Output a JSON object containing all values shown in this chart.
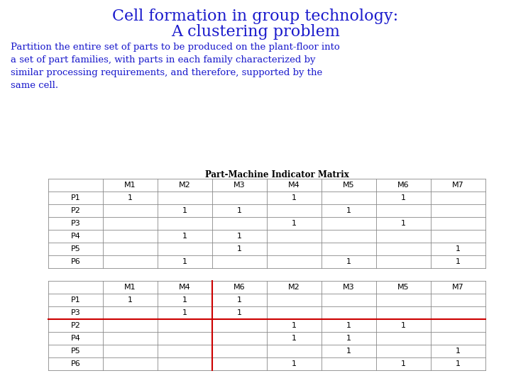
{
  "title_line1": "Cell formation in group technology:",
  "title_line2": "A clustering problem",
  "body_text": "Partition the entire set of parts to be produced on the plant-floor into\na set of part families, with parts in each family characterized by\nsimilar processing requirements, and therefore, supported by the\nsame cell.",
  "subtitle": "Part-Machine Indicator Matrix",
  "title_color": "#1a1acc",
  "body_color": "#1a1acc",
  "subtitle_color": "#000000",
  "bg_color": "#ffffff",
  "table1": {
    "col_headers": [
      "",
      "M1",
      "M2",
      "M3",
      "M4",
      "M5",
      "M6",
      "M7"
    ],
    "rows": [
      [
        "P1",
        "1",
        "",
        "",
        "1",
        "",
        "1",
        ""
      ],
      [
        "P2",
        "",
        "1",
        "1",
        "",
        "1",
        "",
        ""
      ],
      [
        "P3",
        "",
        "",
        "",
        "1",
        "",
        "1",
        ""
      ],
      [
        "P4",
        "",
        "1",
        "1",
        "",
        "",
        "",
        ""
      ],
      [
        "P5",
        "",
        "",
        "1",
        "",
        "",
        "",
        "1"
      ],
      [
        "P6",
        "",
        "1",
        "",
        "",
        "1",
        "",
        "1"
      ]
    ]
  },
  "table2": {
    "col_headers": [
      "",
      "M1",
      "M4",
      "M6",
      "M2",
      "M3",
      "M5",
      "M7"
    ],
    "rows": [
      [
        "P1",
        "1",
        "1",
        "1",
        "",
        "",
        "",
        ""
      ],
      [
        "P3",
        "",
        "1",
        "1",
        "",
        "",
        "",
        ""
      ],
      [
        "P2",
        "",
        "",
        "",
        "1",
        "1",
        "1",
        ""
      ],
      [
        "P4",
        "",
        "",
        "",
        "1",
        "1",
        "",
        ""
      ],
      [
        "P5",
        "",
        "",
        "",
        "",
        "1",
        "",
        "1"
      ],
      [
        "P6",
        "",
        "",
        "",
        "1",
        "",
        "1",
        "1"
      ]
    ],
    "divider_col": 3,
    "divider_row": 2
  }
}
